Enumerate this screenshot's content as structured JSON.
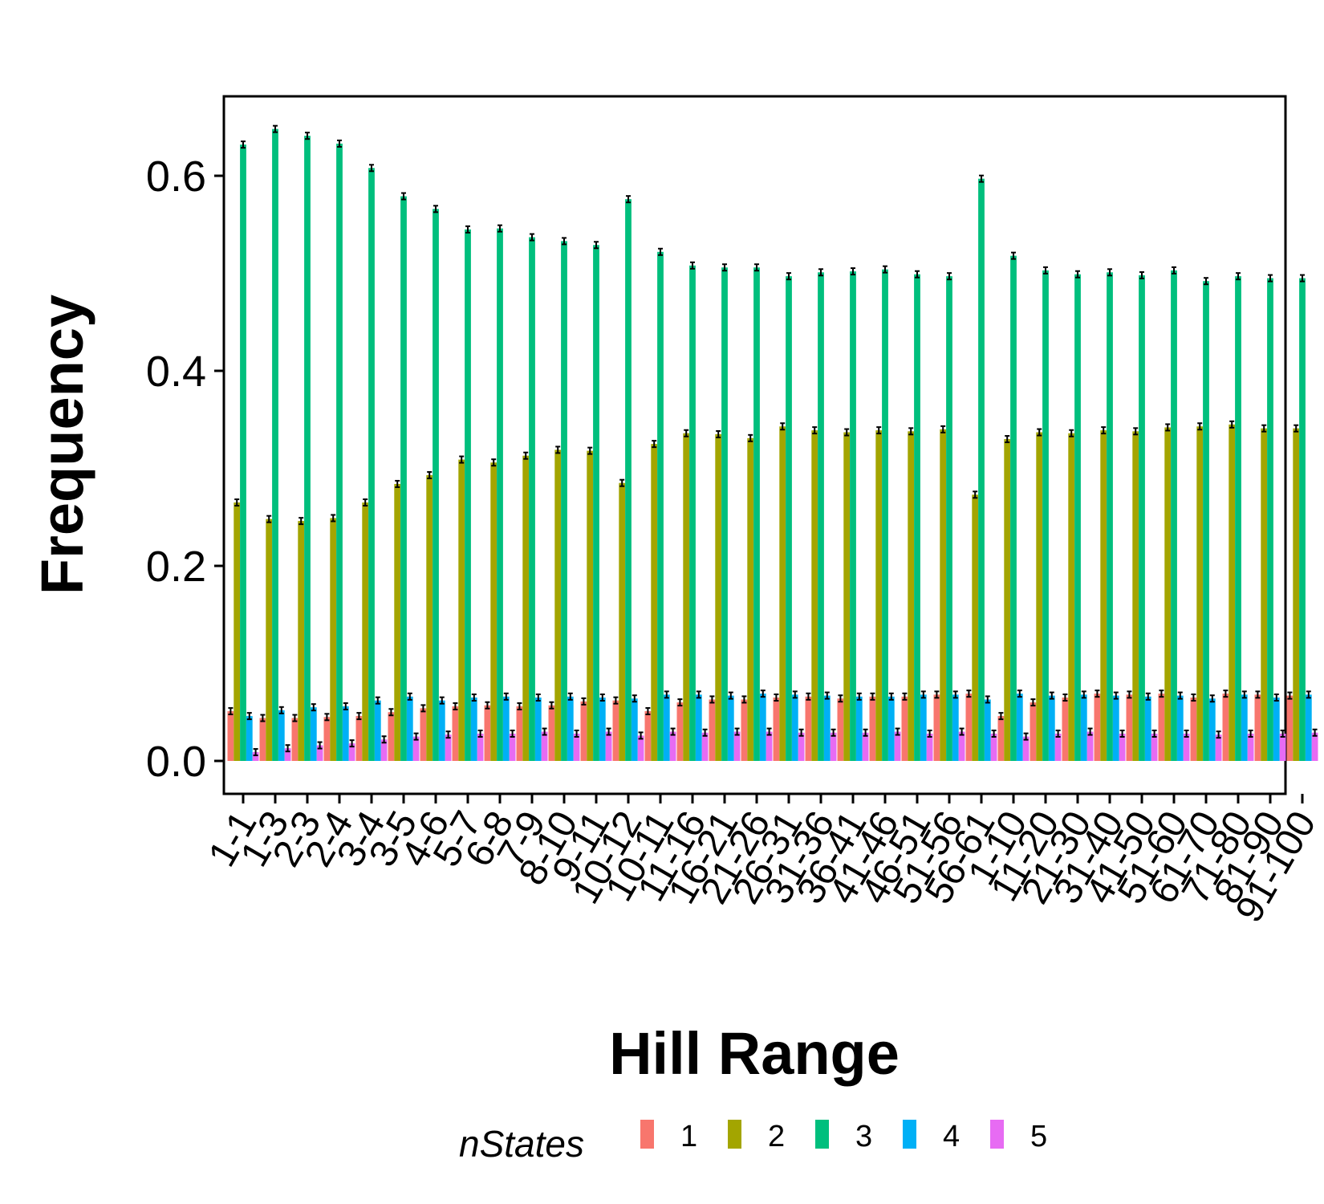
{
  "chart_data": {
    "type": "bar",
    "xlabel": "Hill Range",
    "ylabel": "Frequency",
    "ylim": [
      -0.028,
      0.68
    ],
    "yticks": [
      0.0,
      0.2,
      0.4,
      0.6
    ],
    "ytick_labels": [
      "0.0",
      "0.2",
      "0.4",
      "0.6"
    ],
    "grid": false,
    "legend": {
      "title": "nStates",
      "position": "bottom"
    },
    "categories": [
      "1-1",
      "1-3",
      "2-3",
      "2-4",
      "3-4",
      "3-5",
      "4-6",
      "5-7",
      "6-8",
      "7-9",
      "8-10",
      "9-11",
      "10-12",
      "10-11",
      "11-16",
      "16-21",
      "21-26",
      "26-31",
      "31-36",
      "36-41",
      "41-46",
      "46-51",
      "51-56",
      "56-61",
      "1-10",
      "11-20",
      "21-30",
      "31-40",
      "41-50",
      "51-60",
      "61-70",
      "71-80",
      "81-90",
      "91-100"
    ],
    "series": [
      {
        "name": "1",
        "color": "#F8766D",
        "values": [
          0.051,
          0.044,
          0.044,
          0.045,
          0.046,
          0.05,
          0.054,
          0.056,
          0.057,
          0.056,
          0.057,
          0.061,
          0.062,
          0.051,
          0.06,
          0.063,
          0.063,
          0.065,
          0.066,
          0.064,
          0.066,
          0.066,
          0.068,
          0.069,
          0.046,
          0.06,
          0.065,
          0.069,
          0.068,
          0.069,
          0.065,
          0.069,
          0.068,
          0.067
        ]
      },
      {
        "name": "2",
        "color": "#A3A500",
        "values": [
          0.265,
          0.248,
          0.246,
          0.249,
          0.265,
          0.284,
          0.293,
          0.309,
          0.306,
          0.313,
          0.319,
          0.318,
          0.285,
          0.325,
          0.336,
          0.335,
          0.331,
          0.343,
          0.339,
          0.337,
          0.339,
          0.338,
          0.34,
          0.273,
          0.33,
          0.337,
          0.336,
          0.339,
          0.338,
          0.342,
          0.343,
          0.345,
          0.341,
          0.341
        ]
      },
      {
        "name": "3",
        "color": "#00BF7D",
        "values": [
          0.632,
          0.648,
          0.641,
          0.633,
          0.608,
          0.579,
          0.566,
          0.545,
          0.546,
          0.537,
          0.533,
          0.529,
          0.576,
          0.522,
          0.508,
          0.506,
          0.506,
          0.497,
          0.501,
          0.502,
          0.504,
          0.499,
          0.497,
          0.597,
          0.518,
          0.503,
          0.499,
          0.501,
          0.498,
          0.503,
          0.492,
          0.497,
          0.495,
          0.495
        ]
      },
      {
        "name": "4",
        "color": "#00B0F6",
        "values": [
          0.046,
          0.052,
          0.055,
          0.056,
          0.062,
          0.066,
          0.062,
          0.065,
          0.066,
          0.065,
          0.066,
          0.065,
          0.064,
          0.068,
          0.068,
          0.067,
          0.069,
          0.068,
          0.067,
          0.066,
          0.066,
          0.068,
          0.068,
          0.063,
          0.069,
          0.067,
          0.068,
          0.067,
          0.066,
          0.067,
          0.064,
          0.068,
          0.065,
          0.068
        ]
      },
      {
        "name": "5",
        "color": "#E76BF3",
        "values": [
          0.009,
          0.013,
          0.016,
          0.018,
          0.022,
          0.025,
          0.027,
          0.028,
          0.028,
          0.03,
          0.028,
          0.03,
          0.026,
          0.03,
          0.029,
          0.03,
          0.03,
          0.029,
          0.029,
          0.029,
          0.03,
          0.028,
          0.03,
          0.028,
          0.025,
          0.028,
          0.03,
          0.028,
          0.028,
          0.028,
          0.027,
          0.028,
          0.028,
          0.029
        ]
      }
    ]
  }
}
